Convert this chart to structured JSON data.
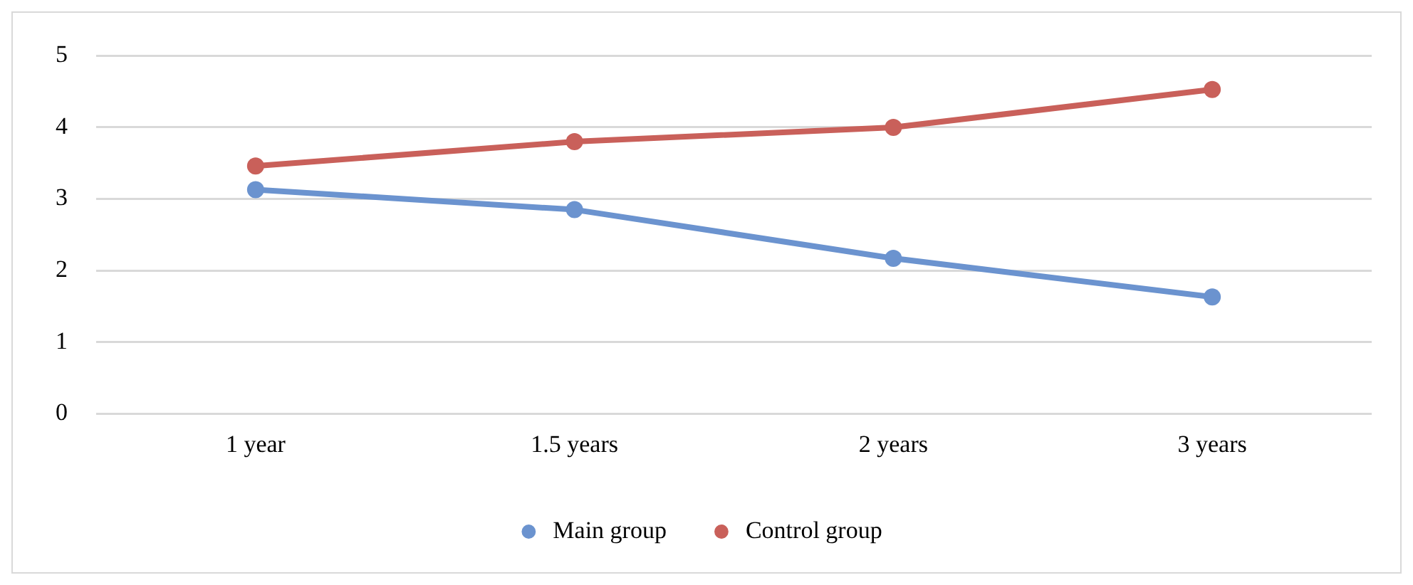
{
  "chart_data": {
    "type": "line",
    "categories": [
      "1 year",
      "1.5 years",
      "2 years",
      "3 years"
    ],
    "series": [
      {
        "name": "Main group",
        "color": "#6b93cf",
        "values": [
          3.13,
          2.85,
          2.17,
          1.63
        ]
      },
      {
        "name": "Control group",
        "color": "#c9605a",
        "values": [
          3.46,
          3.8,
          4.0,
          4.53
        ]
      }
    ],
    "ylim": [
      0,
      5
    ],
    "yticks": [
      0,
      1,
      2,
      3,
      4,
      5
    ],
    "grid": "y",
    "legend": "bottom",
    "marker": "circle",
    "line_style": "solid"
  }
}
